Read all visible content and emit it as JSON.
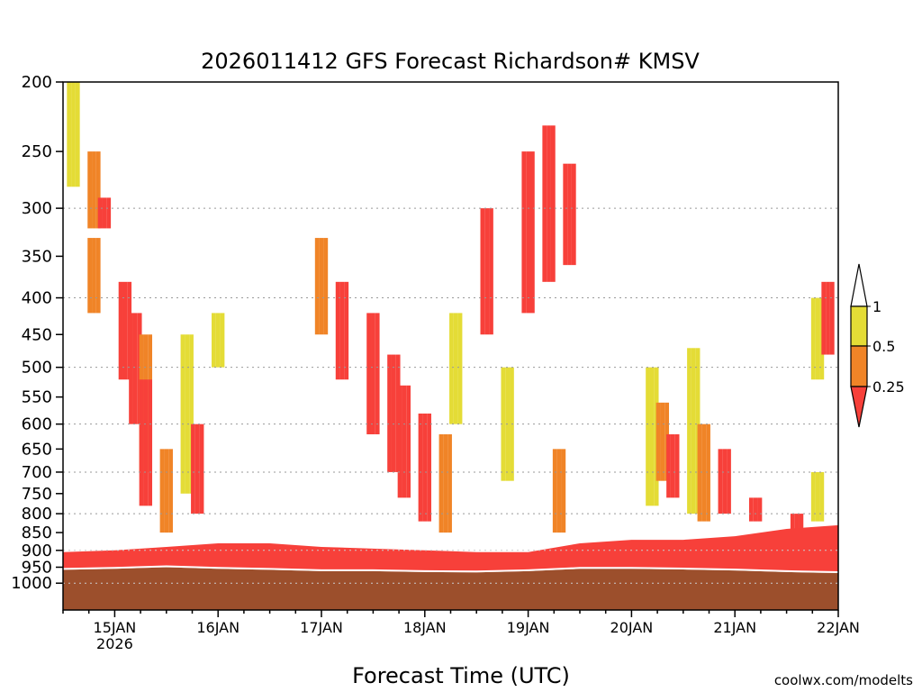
{
  "chart_data": {
    "type": "heatmap",
    "title": "2026011412 GFS Forecast Richardson# KMSV",
    "xlabel": "Forecast Time (UTC)",
    "ylabel": "",
    "y_scale": "log-pressure",
    "y_ticks": [
      200,
      250,
      300,
      350,
      400,
      450,
      500,
      550,
      600,
      650,
      700,
      750,
      800,
      850,
      900,
      950,
      1000
    ],
    "y_grid_levels": [
      300,
      400,
      500,
      600,
      700,
      800,
      900,
      1000
    ],
    "ylim": [
      1000,
      200
    ],
    "x_ticks": [
      "15JAN",
      "16JAN",
      "17JAN",
      "18JAN",
      "19JAN",
      "20JAN",
      "21JAN",
      "22JAN"
    ],
    "x_tick_sublabel": "2026",
    "xlim_days": [
      14.5,
      22.0
    ],
    "legend": {
      "placement": "right",
      "levels": [
        "1",
        "0.5",
        "0.25"
      ],
      "colors": {
        "above_1": "#ffffff",
        "0.5_1": "#e4dc36",
        "0.25_0.5": "#f08427",
        "below_0.25": "#f7403a"
      }
    },
    "cell_width_days": 0.04167,
    "bins": [
      {
        "category": "yellow",
        "day": 14.6,
        "p": [
          200,
          280
        ]
      },
      {
        "category": "orange",
        "day": 14.8,
        "p": [
          250,
          320
        ]
      },
      {
        "category": "red",
        "day": 14.9,
        "p": [
          290,
          320
        ]
      },
      {
        "category": "orange",
        "day": 14.8,
        "p": [
          330,
          420
        ]
      },
      {
        "category": "red",
        "day": 15.1,
        "p": [
          380,
          520
        ]
      },
      {
        "category": "red",
        "day": 15.2,
        "p": [
          420,
          600
        ]
      },
      {
        "category": "orange",
        "day": 15.3,
        "p": [
          450,
          700
        ]
      },
      {
        "category": "red",
        "day": 15.3,
        "p": [
          520,
          780
        ]
      },
      {
        "category": "yellow",
        "day": 15.7,
        "p": [
          450,
          750
        ]
      },
      {
        "category": "red",
        "day": 15.8,
        "p": [
          600,
          800
        ]
      },
      {
        "category": "orange",
        "day": 15.5,
        "p": [
          650,
          850
        ]
      },
      {
        "category": "yellow",
        "day": 16.0,
        "p": [
          420,
          500
        ]
      },
      {
        "category": "orange",
        "day": 17.0,
        "p": [
          330,
          450
        ]
      },
      {
        "category": "red",
        "day": 17.2,
        "p": [
          380,
          520
        ]
      },
      {
        "category": "red",
        "day": 17.5,
        "p": [
          420,
          620
        ]
      },
      {
        "category": "red",
        "day": 17.7,
        "p": [
          480,
          700
        ]
      },
      {
        "category": "red",
        "day": 17.8,
        "p": [
          530,
          760
        ]
      },
      {
        "category": "red",
        "day": 18.0,
        "p": [
          580,
          820
        ]
      },
      {
        "category": "orange",
        "day": 18.2,
        "p": [
          620,
          850
        ]
      },
      {
        "category": "yellow",
        "day": 18.3,
        "p": [
          420,
          600
        ]
      },
      {
        "category": "red",
        "day": 18.6,
        "p": [
          300,
          450
        ]
      },
      {
        "category": "red",
        "day": 19.0,
        "p": [
          250,
          420
        ]
      },
      {
        "category": "red",
        "day": 19.2,
        "p": [
          230,
          380
        ]
      },
      {
        "category": "red",
        "day": 19.4,
        "p": [
          260,
          360
        ]
      },
      {
        "category": "yellow",
        "day": 18.8,
        "p": [
          500,
          720
        ]
      },
      {
        "category": "orange",
        "day": 19.3,
        "p": [
          650,
          850
        ]
      },
      {
        "category": "yellow",
        "day": 20.2,
        "p": [
          500,
          780
        ]
      },
      {
        "category": "orange",
        "day": 20.3,
        "p": [
          560,
          720
        ]
      },
      {
        "category": "red",
        "day": 20.4,
        "p": [
          620,
          760
        ]
      },
      {
        "category": "yellow",
        "day": 20.6,
        "p": [
          470,
          800
        ]
      },
      {
        "category": "orange",
        "day": 20.7,
        "p": [
          600,
          820
        ]
      },
      {
        "category": "red",
        "day": 20.9,
        "p": [
          650,
          800
        ]
      },
      {
        "category": "red",
        "day": 21.2,
        "p": [
          760,
          820
        ]
      },
      {
        "category": "yellow",
        "day": 21.8,
        "p": [
          400,
          520
        ]
      },
      {
        "category": "red",
        "day": 21.9,
        "p": [
          380,
          480
        ]
      },
      {
        "category": "yellow",
        "day": 21.8,
        "p": [
          700,
          820
        ]
      },
      {
        "category": "red",
        "day": 21.6,
        "p": [
          800,
          900
        ]
      }
    ],
    "pbl_red_top_p": [
      [
        14.5,
        905
      ],
      [
        15.0,
        900
      ],
      [
        15.5,
        890
      ],
      [
        16.0,
        880
      ],
      [
        16.5,
        880
      ],
      [
        17.0,
        890
      ],
      [
        17.5,
        895
      ],
      [
        18.0,
        900
      ],
      [
        18.5,
        905
      ],
      [
        19.0,
        905
      ],
      [
        19.5,
        880
      ],
      [
        20.0,
        870
      ],
      [
        20.5,
        870
      ],
      [
        21.0,
        860
      ],
      [
        21.5,
        840
      ],
      [
        22.0,
        830
      ]
    ],
    "surface_p": [
      [
        14.5,
        958
      ],
      [
        15.0,
        955
      ],
      [
        15.5,
        950
      ],
      [
        16.0,
        955
      ],
      [
        16.5,
        958
      ],
      [
        17.0,
        962
      ],
      [
        17.5,
        962
      ],
      [
        18.0,
        965
      ],
      [
        18.5,
        966
      ],
      [
        19.0,
        962
      ],
      [
        19.5,
        955
      ],
      [
        20.0,
        955
      ],
      [
        20.5,
        957
      ],
      [
        21.0,
        960
      ],
      [
        21.5,
        965
      ],
      [
        22.0,
        968
      ]
    ]
  },
  "footer": {
    "credit": "coolwx.com/modelts"
  }
}
